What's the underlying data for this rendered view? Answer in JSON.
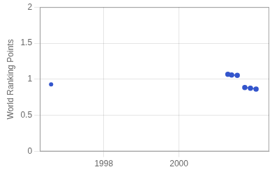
{
  "chart_data": {
    "type": "scatter",
    "y_label": "World Ranking Points",
    "series": [
      {
        "x": [
          1996.6
        ],
        "values": [
          0.93
        ],
        "color": "#3355cc",
        "marker": "circle",
        "line_style": "none"
      },
      {
        "x": [
          2001.3,
          2001.4,
          2001.55
        ],
        "values": [
          1.07,
          1.06,
          1.055
        ],
        "color": "#3355cc",
        "marker": "circle",
        "line_style": "solid"
      },
      {
        "x": [
          2001.75,
          2001.9,
          2002.05
        ],
        "values": [
          0.885,
          0.875,
          0.865
        ],
        "color": "#3355cc",
        "marker": "circle",
        "line_style": "solid"
      }
    ],
    "xlim": [
      1996.3,
      2002.4
    ],
    "xticks": [
      1998,
      2000
    ],
    "ylim": [
      0,
      2.0
    ],
    "yticks": [
      0,
      0.5,
      1.0,
      1.5,
      2.0
    ],
    "grid": true
  }
}
